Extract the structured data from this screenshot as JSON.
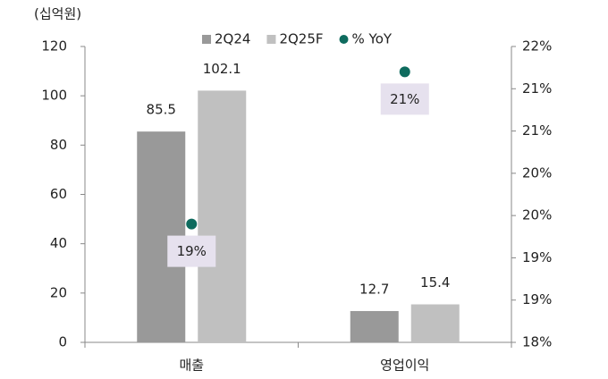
{
  "chart_data": {
    "type": "bar",
    "unit_label": "(십억원)",
    "categories": [
      "매출",
      "영업이익"
    ],
    "series": [
      {
        "name": "2Q24",
        "color": "#999999",
        "values": [
          85.5,
          12.7
        ]
      },
      {
        "name": "2Q25F",
        "color": "#c0c0c0",
        "values": [
          102.1,
          15.4
        ]
      },
      {
        "name": "% YoY",
        "type": "scatter",
        "axis": "y2",
        "color": "#0e6b5e",
        "values": [
          19.4,
          21.2
        ],
        "value_labels": [
          "19%",
          "21%"
        ]
      }
    ],
    "ylim": [
      0,
      120
    ],
    "yticks": [
      0,
      20,
      40,
      60,
      80,
      100,
      120
    ],
    "y2lim": [
      18,
      21.5
    ],
    "y2ticks": [
      {
        "value": 18,
        "label": "18%"
      },
      {
        "value": 18.5,
        "label": "19%"
      },
      {
        "value": 19,
        "label": "19%"
      },
      {
        "value": 19.5,
        "label": "20%"
      },
      {
        "value": 20,
        "label": "20%"
      },
      {
        "value": 20.5,
        "label": "21%"
      },
      {
        "value": 21,
        "label": "21%"
      },
      {
        "value": 21.5,
        "label": "22%"
      }
    ],
    "legend": "top"
  }
}
